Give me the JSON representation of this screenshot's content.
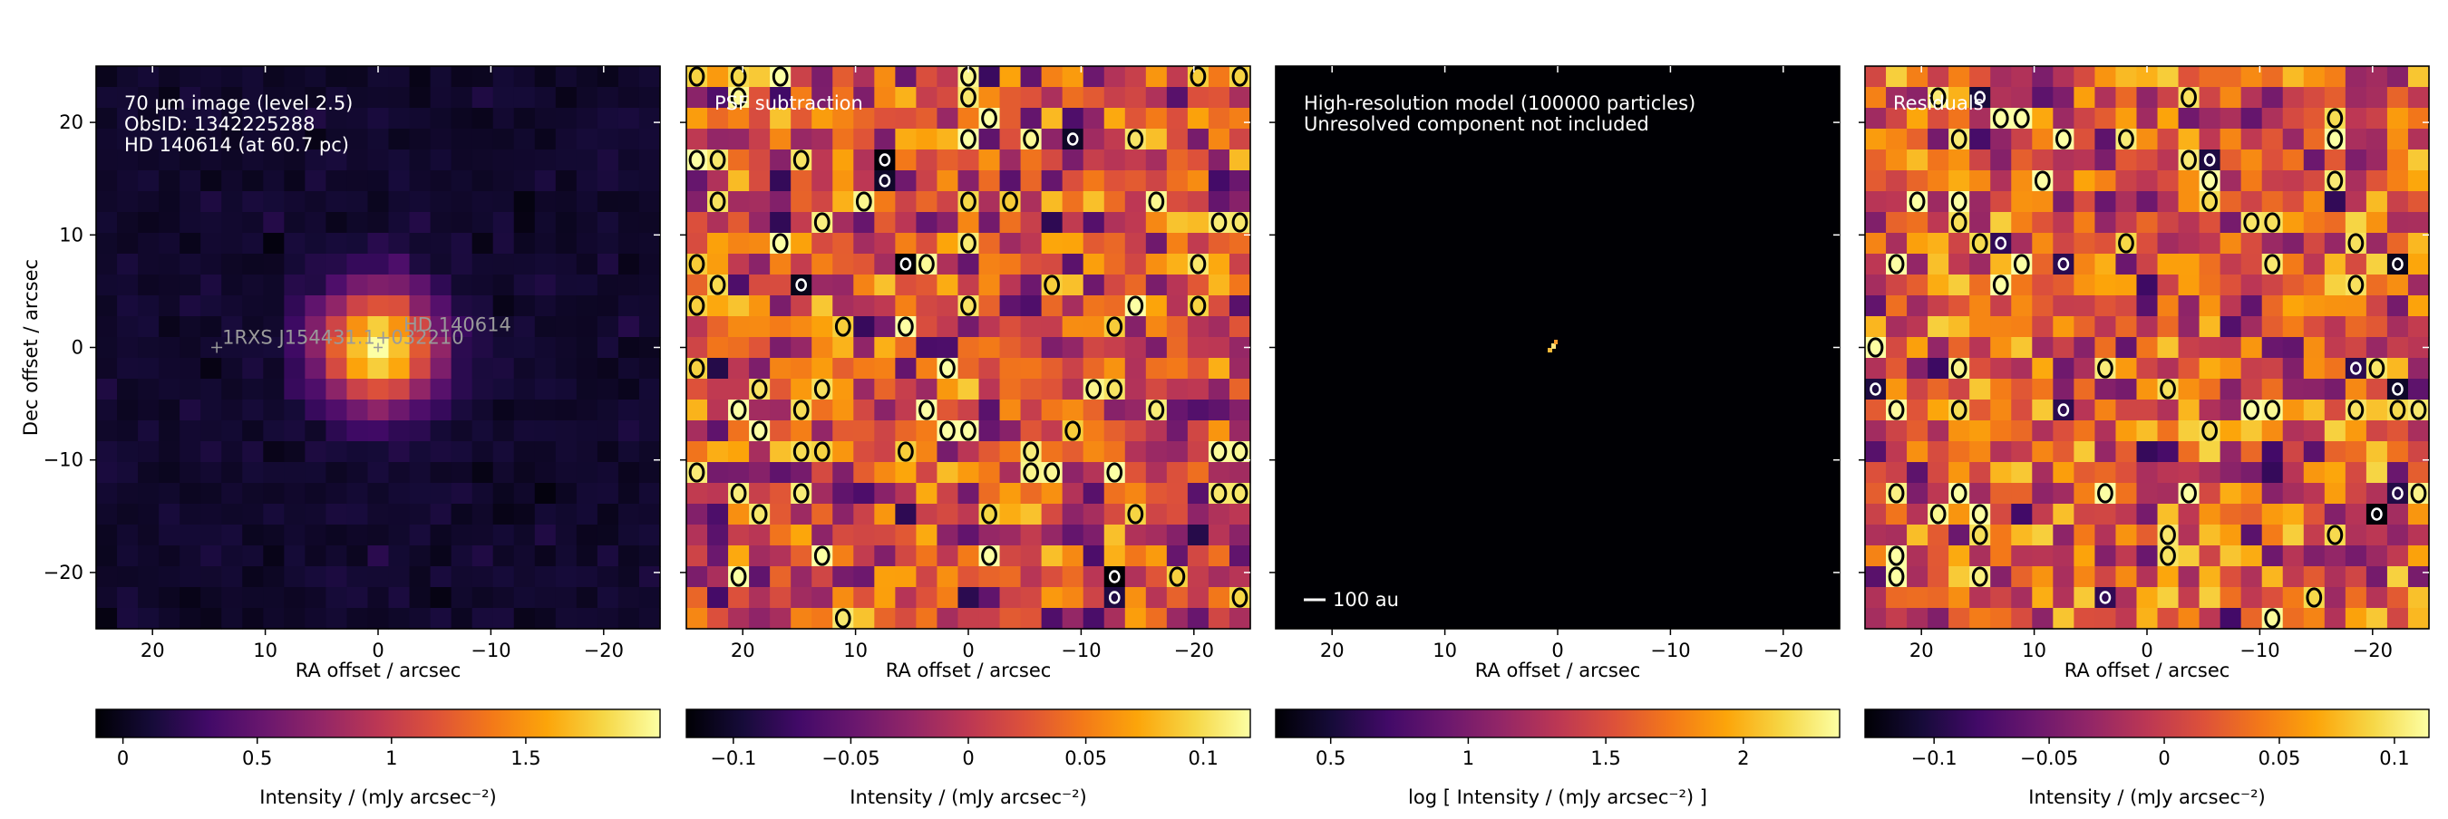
{
  "chart_data": [
    {
      "type": "heatmap",
      "colormap": "inferno",
      "title": "",
      "xlabel": "RA offset / arcsec",
      "ylabel": "Dec offset / arcsec",
      "xlim": [
        25,
        -25
      ],
      "ylim": [
        -25,
        25
      ],
      "x_ticks": [
        20,
        10,
        0,
        -10,
        -20
      ],
      "x_tick_labels": [
        "20",
        "10",
        "0",
        "−10",
        "−20"
      ],
      "y_ticks": [
        20,
        10,
        0,
        -10,
        -20
      ],
      "y_tick_labels": [
        "20",
        "10",
        "0",
        "−10",
        "−20"
      ],
      "text_lines": [
        "70 µm image (level 2.5)",
        "ObsID: 1342225288",
        "HD 140614 (at 60.7 pc)"
      ],
      "sources": [
        {
          "label": "HD 140614",
          "ra": 0,
          "dec": 0,
          "peak": 1.95,
          "fwhm": 6
        },
        {
          "label": "1RXS J154431.1+032210",
          "ra": 14.3,
          "dec": 0,
          "peak": 0.0,
          "fwhm": 0
        }
      ],
      "colorbar": {
        "label": "Intensity / (mJy arcsec⁻²)",
        "range": [
          -0.1,
          2.0
        ],
        "ticks": [
          0,
          0.5,
          1,
          1.5
        ],
        "tick_labels": [
          "0",
          "0.5",
          "1",
          "1.5"
        ]
      }
    },
    {
      "type": "heatmap",
      "colormap": "inferno",
      "xlabel": "RA offset / arcsec",
      "xlim": [
        25,
        -25
      ],
      "ylim": [
        -25,
        25
      ],
      "x_ticks": [
        20,
        10,
        0,
        -10,
        -20
      ],
      "x_tick_labels": [
        "20",
        "10",
        "0",
        "−10",
        "−20"
      ],
      "y_ticks": [
        20,
        10,
        0,
        -10,
        -20
      ],
      "text_lines": [
        "PSF subtraction"
      ],
      "noise_seed": 7,
      "contour_levels": [
        -0.09,
        0.09
      ],
      "colorbar": {
        "label": "Intensity / (mJy arcsec⁻²)",
        "range": [
          -0.12,
          0.12
        ],
        "ticks": [
          -0.1,
          -0.05,
          0,
          0.05,
          0.1
        ],
        "tick_labels": [
          "−0.1",
          "−0.05",
          "0",
          "0.05",
          "0.1"
        ]
      }
    },
    {
      "type": "heatmap",
      "colormap": "inferno",
      "xlabel": "RA offset / arcsec",
      "xlim": [
        25,
        -25
      ],
      "ylim": [
        -25,
        25
      ],
      "x_ticks": [
        20,
        10,
        0,
        -10,
        -20
      ],
      "x_tick_labels": [
        "20",
        "10",
        "0",
        "−10",
        "−20"
      ],
      "y_ticks": [
        20,
        10,
        0,
        -10,
        -20
      ],
      "text_lines": [
        "High-resolution model (100000 particles)",
        "Unresolved component not included"
      ],
      "scale_bar_label": "100 au",
      "model_feature": {
        "ra": 0.4,
        "dec": 0.2,
        "extent_arcsec": 1.2
      },
      "colorbar": {
        "label": "log [ Intensity / (mJy arcsec⁻²) ]",
        "range": [
          0.3,
          2.35
        ],
        "ticks": [
          0.5,
          1,
          1.5,
          2
        ],
        "tick_labels": [
          "0.5",
          "1",
          "1.5",
          "2"
        ]
      }
    },
    {
      "type": "heatmap",
      "colormap": "inferno",
      "xlabel": "RA offset / arcsec",
      "xlim": [
        25,
        -25
      ],
      "ylim": [
        -25,
        25
      ],
      "x_ticks": [
        20,
        10,
        0,
        -10,
        -20
      ],
      "x_tick_labels": [
        "20",
        "10",
        "0",
        "−10",
        "−20"
      ],
      "y_ticks": [
        20,
        10,
        0,
        -10,
        -20
      ],
      "text_lines": [
        "Residuals"
      ],
      "noise_seed": 11,
      "contour_levels": [
        -0.09,
        0.09
      ],
      "colorbar": {
        "label": "Intensity / (mJy arcsec⁻²)",
        "range": [
          -0.13,
          0.115
        ],
        "ticks": [
          -0.1,
          -0.05,
          0,
          0.05,
          0.1
        ],
        "tick_labels": [
          "−0.1",
          "−0.05",
          "0",
          "0.05",
          "0.1"
        ]
      }
    }
  ],
  "colors": {
    "text": "#000000",
    "annotation": "#ffffff",
    "source_label": "#9a9a9a",
    "contour_pos": "#000000",
    "contour_neg": "#ffffff",
    "positive_fill": "#f7d13d"
  }
}
